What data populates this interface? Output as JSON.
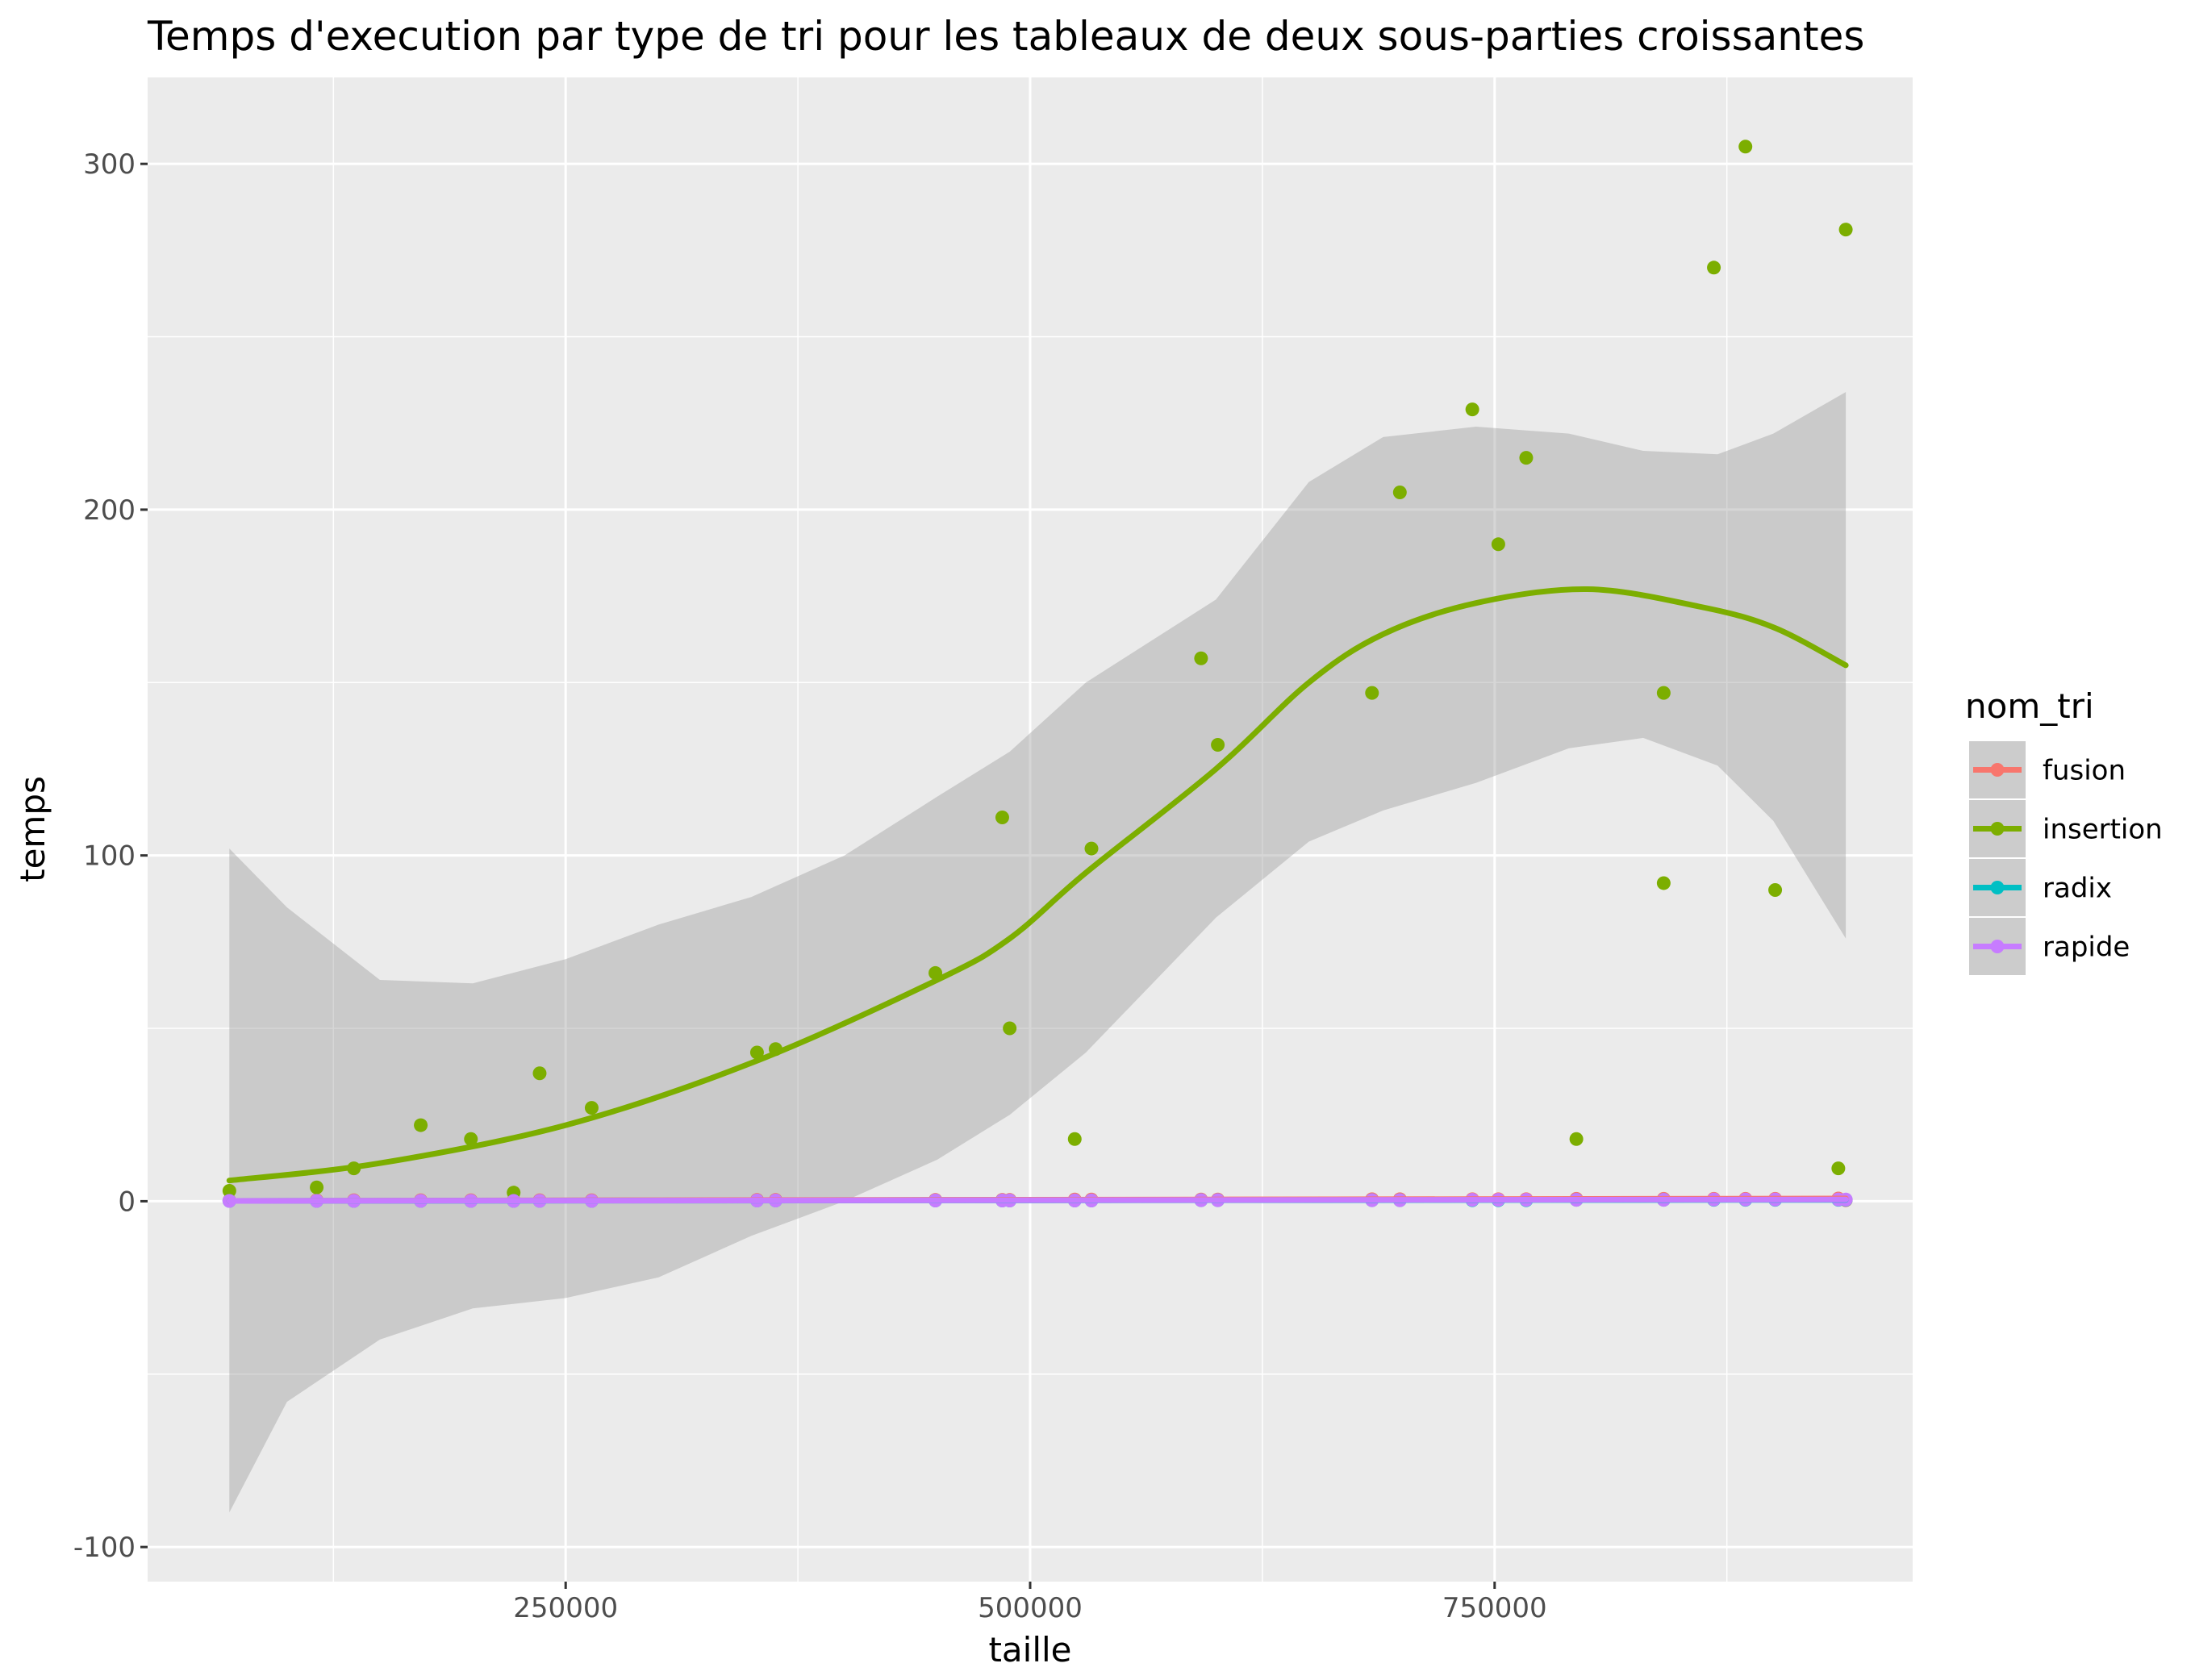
{
  "chart_data": {
    "type": "scatter",
    "title": "Temps d'execution par type de tri pour les tableaux de deux sous-parties croissantes",
    "xlabel": "taille",
    "ylabel": "temps",
    "xlim": [
      25000,
      975000
    ],
    "ylim": [
      -110,
      325
    ],
    "x_ticks": [
      250000,
      500000,
      750000
    ],
    "x_tick_labels": [
      "250000",
      "500000",
      "750000"
    ],
    "y_ticks": [
      -100,
      0,
      100,
      200,
      300
    ],
    "y_tick_labels": [
      "-100",
      "0",
      "100",
      "200",
      "300"
    ],
    "grid": true,
    "legend": {
      "title": "nom_tri",
      "placement": "right"
    },
    "series": [
      {
        "name": "fusion",
        "color": "#F8766D",
        "points": [
          [
            69000,
            0.2
          ],
          [
            116000,
            0.3
          ],
          [
            136000,
            0.3
          ],
          [
            172000,
            0.3
          ],
          [
            199000,
            0.3
          ],
          [
            222000,
            0.3
          ],
          [
            236000,
            0.3
          ],
          [
            264000,
            0.3
          ],
          [
            353000,
            0.4
          ],
          [
            363000,
            0.4
          ],
          [
            449000,
            0.4
          ],
          [
            485000,
            0.4
          ],
          [
            489000,
            0.4
          ],
          [
            524000,
            0.5
          ],
          [
            533000,
            0.5
          ],
          [
            592000,
            0.5
          ],
          [
            601000,
            0.5
          ],
          [
            684000,
            0.6
          ],
          [
            699000,
            0.6
          ],
          [
            738000,
            0.6
          ],
          [
            752000,
            0.6
          ],
          [
            767000,
            0.6
          ],
          [
            794000,
            0.7
          ],
          [
            841000,
            0.7
          ],
          [
            868000,
            0.7
          ],
          [
            885000,
            0.7
          ],
          [
            901000,
            0.7
          ],
          [
            935000,
            0.8
          ],
          [
            939000,
            0.3
          ]
        ],
        "smooth": [
          [
            69000,
            0.1
          ],
          [
            300000,
            0.3
          ],
          [
            600000,
            0.5
          ],
          [
            939000,
            0.8
          ]
        ]
      },
      {
        "name": "insertion",
        "color": "#7CAE00",
        "points": [
          [
            69000,
            3
          ],
          [
            116000,
            4
          ],
          [
            136000,
            9.5
          ],
          [
            172000,
            22
          ],
          [
            199000,
            18
          ],
          [
            222000,
            2.5
          ],
          [
            236000,
            37
          ],
          [
            264000,
            27
          ],
          [
            353000,
            43
          ],
          [
            363000,
            44
          ],
          [
            449000,
            66
          ],
          [
            485000,
            111
          ],
          [
            489000,
            50
          ],
          [
            524000,
            18
          ],
          [
            533000,
            102
          ],
          [
            592000,
            157
          ],
          [
            601000,
            132
          ],
          [
            684000,
            147
          ],
          [
            699000,
            205
          ],
          [
            738000,
            229
          ],
          [
            752000,
            190
          ],
          [
            767000,
            215
          ],
          [
            794000,
            18
          ],
          [
            841000,
            92
          ],
          [
            841000,
            147
          ],
          [
            868000,
            270
          ],
          [
            885000,
            305
          ],
          [
            901000,
            90
          ],
          [
            935000,
            9.5
          ],
          [
            939000,
            281
          ]
        ],
        "smooth": [
          [
            69000,
            6
          ],
          [
            150000,
            11
          ],
          [
            250000,
            22
          ],
          [
            350000,
            40
          ],
          [
            450000,
            64
          ],
          [
            489000,
            76
          ],
          [
            530000,
            95
          ],
          [
            600000,
            125
          ],
          [
            650000,
            150
          ],
          [
            690000,
            164
          ],
          [
            740000,
            173
          ],
          [
            800000,
            177
          ],
          [
            860000,
            172
          ],
          [
            900000,
            166
          ],
          [
            939000,
            155
          ]
        ],
        "ribbon": [
          [
            69000,
            -90,
            102
          ],
          [
            100000,
            -58,
            85
          ],
          [
            150000,
            -40,
            64
          ],
          [
            200000,
            -31,
            63
          ],
          [
            250000,
            -28,
            70
          ],
          [
            300000,
            -22,
            80
          ],
          [
            350000,
            -10,
            88
          ],
          [
            400000,
            0,
            100
          ],
          [
            450000,
            12,
            117
          ],
          [
            489000,
            25,
            130
          ],
          [
            530000,
            43,
            150
          ],
          [
            600000,
            82,
            174
          ],
          [
            650000,
            104,
            208
          ],
          [
            690000,
            113,
            221
          ],
          [
            740000,
            121,
            224
          ],
          [
            790000,
            131,
            222
          ],
          [
            830000,
            134,
            217
          ],
          [
            870000,
            126,
            216
          ],
          [
            900000,
            110,
            222
          ],
          [
            939000,
            76,
            234
          ]
        ]
      },
      {
        "name": "radix",
        "color": "#00BFC4",
        "points": [
          [
            69000,
            0.1
          ],
          [
            116000,
            0.1
          ],
          [
            136000,
            0.1
          ],
          [
            172000,
            0.1
          ],
          [
            199000,
            0.1
          ],
          [
            222000,
            0.1
          ],
          [
            236000,
            0.1
          ],
          [
            264000,
            0.1
          ],
          [
            353000,
            0.2
          ],
          [
            363000,
            0.2
          ],
          [
            449000,
            0.2
          ],
          [
            485000,
            0.2
          ],
          [
            489000,
            0.2
          ],
          [
            524000,
            0.2
          ],
          [
            533000,
            0.2
          ],
          [
            592000,
            0.3
          ],
          [
            601000,
            0.3
          ],
          [
            684000,
            0.3
          ],
          [
            699000,
            0.3
          ],
          [
            738000,
            0.3
          ],
          [
            752000,
            0.3
          ],
          [
            767000,
            0.3
          ],
          [
            794000,
            0.4
          ],
          [
            841000,
            0.4
          ],
          [
            868000,
            0.4
          ],
          [
            885000,
            0.4
          ],
          [
            901000,
            0.4
          ],
          [
            935000,
            0.4
          ],
          [
            939000,
            0.4
          ]
        ],
        "smooth": [
          [
            69000,
            0.1
          ],
          [
            939000,
            0.4
          ]
        ]
      },
      {
        "name": "rapide",
        "color": "#C77CFF",
        "points": [
          [
            69000,
            0.1
          ],
          [
            116000,
            0.1
          ],
          [
            136000,
            0.1
          ],
          [
            172000,
            0.1
          ],
          [
            199000,
            0.1
          ],
          [
            222000,
            0.1
          ],
          [
            236000,
            0.1
          ],
          [
            264000,
            0.1
          ],
          [
            353000,
            0.2
          ],
          [
            363000,
            0.2
          ],
          [
            449000,
            0.2
          ],
          [
            485000,
            0.2
          ],
          [
            489000,
            0.2
          ],
          [
            524000,
            0.2
          ],
          [
            533000,
            0.2
          ],
          [
            592000,
            0.3
          ],
          [
            601000,
            0.3
          ],
          [
            684000,
            0.3
          ],
          [
            699000,
            0.3
          ],
          [
            738000,
            0.4
          ],
          [
            752000,
            0.4
          ],
          [
            767000,
            0.4
          ],
          [
            794000,
            0.4
          ],
          [
            841000,
            0.4
          ],
          [
            868000,
            0.5
          ],
          [
            885000,
            0.5
          ],
          [
            901000,
            0.5
          ],
          [
            935000,
            0.5
          ],
          [
            939000,
            0.5
          ]
        ],
        "smooth": [
          [
            69000,
            0.1
          ],
          [
            939000,
            0.5
          ]
        ]
      }
    ]
  }
}
